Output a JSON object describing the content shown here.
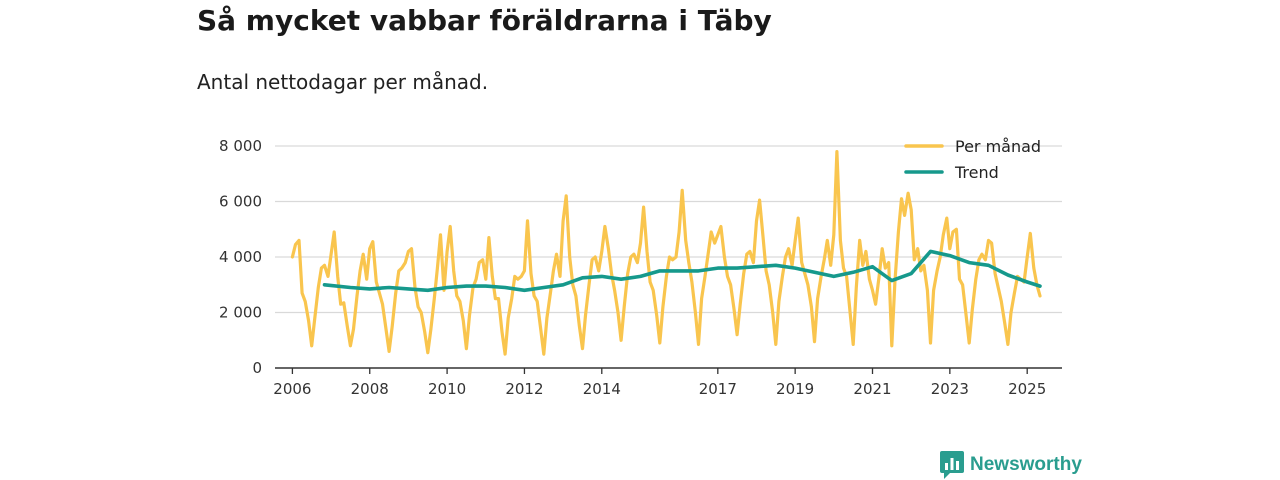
{
  "title": "Så mycket vabbar föräldrarna i Täby",
  "subtitle": "Antal nettodagar per månad.",
  "brand": {
    "name": "Newsworthy",
    "icon": "newsworthy-logo-icon"
  },
  "colors": {
    "monthly": "#f9c54e",
    "trend": "#16998c",
    "grid": "#d9d9d9",
    "axis": "#333333",
    "brand": "#2a9d8f"
  },
  "chart_data": {
    "type": "line",
    "title": "Så mycket vabbar föräldrarna i Täby",
    "subtitle": "Antal nettodagar per månad.",
    "xlabel": "",
    "ylabel": "",
    "xlim": [
      2005.55,
      2025.9
    ],
    "ylim": [
      0,
      8000
    ],
    "yticks": [
      0,
      2000,
      4000,
      6000,
      8000
    ],
    "ytick_labels": [
      "0",
      "2 000",
      "4 000",
      "6 000",
      "8 000"
    ],
    "xticks": [
      2006,
      2008,
      2010,
      2012,
      2014,
      2017,
      2019,
      2021,
      2023,
      2025
    ],
    "xtick_labels": [
      "2006",
      "2008",
      "2010",
      "2012",
      "2014",
      "2017",
      "2019",
      "2021",
      "2023",
      "2025"
    ],
    "grid": true,
    "legend": {
      "position": "top-right",
      "entries": [
        "Per månad",
        "Trend"
      ]
    },
    "series": [
      {
        "name": "Per månad",
        "x": [
          2006.0,
          2006.08,
          2006.17,
          2006.25,
          2006.33,
          2006.42,
          2006.5,
          2006.58,
          2006.67,
          2006.75,
          2006.83,
          2006.92,
          2007.0,
          2007.08,
          2007.17,
          2007.25,
          2007.33,
          2007.42,
          2007.5,
          2007.58,
          2007.67,
          2007.75,
          2007.83,
          2007.92,
          2008.0,
          2008.08,
          2008.17,
          2008.25,
          2008.33,
          2008.42,
          2008.5,
          2008.58,
          2008.67,
          2008.75,
          2008.83,
          2008.92,
          2009.0,
          2009.08,
          2009.17,
          2009.25,
          2009.33,
          2009.42,
          2009.5,
          2009.58,
          2009.67,
          2009.75,
          2009.83,
          2009.92,
          2010.0,
          2010.08,
          2010.17,
          2010.25,
          2010.33,
          2010.42,
          2010.5,
          2010.58,
          2010.67,
          2010.75,
          2010.83,
          2010.92,
          2011.0,
          2011.08,
          2011.17,
          2011.25,
          2011.33,
          2011.42,
          2011.5,
          2011.58,
          2011.67,
          2011.75,
          2011.83,
          2011.92,
          2012.0,
          2012.08,
          2012.17,
          2012.25,
          2012.33,
          2012.42,
          2012.5,
          2012.58,
          2012.67,
          2012.75,
          2012.83,
          2012.92,
          2013.0,
          2013.08,
          2013.17,
          2013.25,
          2013.33,
          2013.42,
          2013.5,
          2013.58,
          2013.67,
          2013.75,
          2013.83,
          2013.92,
          2014.0,
          2014.08,
          2014.17,
          2014.25,
          2014.33,
          2014.42,
          2014.5,
          2014.58,
          2014.67,
          2014.75,
          2014.83,
          2014.92,
          2015.0,
          2015.08,
          2015.17,
          2015.25,
          2015.33,
          2015.42,
          2015.5,
          2015.58,
          2015.67,
          2015.75,
          2015.83,
          2015.92,
          2016.0,
          2016.08,
          2016.17,
          2016.25,
          2016.33,
          2016.42,
          2016.5,
          2016.58,
          2016.67,
          2016.75,
          2016.83,
          2016.92,
          2017.0,
          2017.08,
          2017.17,
          2017.25,
          2017.33,
          2017.42,
          2017.5,
          2017.58,
          2017.67,
          2017.75,
          2017.83,
          2017.92,
          2018.0,
          2018.08,
          2018.17,
          2018.25,
          2018.33,
          2018.42,
          2018.5,
          2018.58,
          2018.67,
          2018.75,
          2018.83,
          2018.92,
          2019.0,
          2019.08,
          2019.17,
          2019.25,
          2019.33,
          2019.42,
          2019.5,
          2019.58,
          2019.67,
          2019.75,
          2019.83,
          2019.92,
          2020.0,
          2020.08,
          2020.17,
          2020.25,
          2020.33,
          2020.42,
          2020.5,
          2020.58,
          2020.67,
          2020.75,
          2020.83,
          2020.92,
          2021.0,
          2021.08,
          2021.17,
          2021.25,
          2021.33,
          2021.42,
          2021.5,
          2021.58,
          2021.67,
          2021.75,
          2021.83,
          2021.92,
          2022.0,
          2022.08,
          2022.17,
          2022.25,
          2022.33,
          2022.42,
          2022.5,
          2022.58,
          2022.67,
          2022.75,
          2022.83,
          2022.92,
          2023.0,
          2023.08,
          2023.17,
          2023.25,
          2023.33,
          2023.42,
          2023.5,
          2023.58,
          2023.67,
          2023.75,
          2023.83,
          2023.92,
          2024.0,
          2024.08,
          2024.17,
          2024.25,
          2024.33,
          2024.42,
          2024.5,
          2024.58,
          2024.67,
          2024.75,
          2024.83,
          2024.92,
          2025.0,
          2025.08,
          2025.17,
          2025.25,
          2025.33
        ],
        "values": [
          4000,
          4450,
          4600,
          2700,
          2400,
          1700,
          800,
          1800,
          2900,
          3600,
          3700,
          3300,
          4100,
          4900,
          3300,
          2300,
          2350,
          1500,
          800,
          1400,
          2600,
          3500,
          4100,
          3200,
          4300,
          4550,
          3100,
          2700,
          2300,
          1400,
          600,
          1500,
          2700,
          3500,
          3600,
          3800,
          4200,
          4300,
          2900,
          2200,
          2000,
          1300,
          550,
          1400,
          2500,
          3600,
          4800,
          2800,
          4200,
          5100,
          3500,
          2600,
          2400,
          1700,
          700,
          1900,
          2900,
          3200,
          3800,
          3900,
          3200,
          4700,
          3300,
          2500,
          2500,
          1300,
          500,
          1800,
          2500,
          3300,
          3200,
          3300,
          3500,
          5300,
          3400,
          2600,
          2400,
          1400,
          500,
          1800,
          2700,
          3500,
          4100,
          3300,
          5300,
          6200,
          4000,
          3000,
          2600,
          1500,
          700,
          1900,
          3000,
          3900,
          4000,
          3500,
          4200,
          5100,
          4300,
          3400,
          2800,
          2000,
          1000,
          2200,
          3400,
          4000,
          4100,
          3800,
          4500,
          5800,
          4200,
          3100,
          2800,
          1900,
          900,
          2200,
          3300,
          4000,
          3900,
          4000,
          4900,
          6400,
          4600,
          3800,
          3100,
          2000,
          850,
          2500,
          3300,
          4100,
          4900,
          4500,
          4800,
          5100,
          4000,
          3300,
          3000,
          2100,
          1200,
          2300,
          3400,
          4100,
          4200,
          3800,
          5300,
          6050,
          4700,
          3500,
          3000,
          2000,
          850,
          2400,
          3300,
          4000,
          4300,
          3700,
          4600,
          5400,
          3800,
          3400,
          3000,
          2200,
          950,
          2500,
          3300,
          3900,
          4600,
          3700,
          4800,
          7800,
          4600,
          3600,
          3300,
          2000,
          850,
          2900,
          4600,
          3700,
          4200,
          3200,
          2800,
          2300,
          3300,
          4300,
          3600,
          3800,
          800,
          3100,
          4900,
          6100,
          5500,
          6300,
          5700,
          3900,
          4300,
          3500,
          3700,
          2800,
          900,
          2800,
          3500,
          4000,
          4800,
          5400,
          4300,
          4900,
          5000,
          3200,
          3000,
          1900,
          900,
          2100,
          3200,
          3900,
          4100,
          3900,
          4600,
          4500,
          3400,
          2900,
          2400,
          1600,
          850,
          2000,
          2700,
          3300,
          3200,
          3100,
          4000,
          4850,
          3600,
          3000,
          2600
        ]
      },
      {
        "name": "Trend",
        "x": [
          2006.83,
          2007.5,
          2008.0,
          2008.5,
          2009.0,
          2009.5,
          2010.0,
          2010.5,
          2011.0,
          2011.5,
          2012.0,
          2012.5,
          2013.0,
          2013.5,
          2014.0,
          2014.5,
          2015.0,
          2015.5,
          2016.0,
          2016.5,
          2017.0,
          2017.5,
          2018.0,
          2018.5,
          2019.0,
          2019.5,
          2020.0,
          2020.5,
          2021.0,
          2021.5,
          2022.0,
          2022.5,
          2023.0,
          2023.5,
          2024.0,
          2024.5,
          2025.0,
          2025.33
        ],
        "values": [
          3000,
          2900,
          2850,
          2900,
          2850,
          2800,
          2900,
          2950,
          2950,
          2900,
          2800,
          2900,
          3000,
          3250,
          3300,
          3200,
          3300,
          3500,
          3500,
          3500,
          3600,
          3600,
          3650,
          3700,
          3600,
          3450,
          3300,
          3450,
          3650,
          3150,
          3400,
          4200,
          4050,
          3800,
          3700,
          3350,
          3100,
          2950
        ]
      }
    ]
  }
}
